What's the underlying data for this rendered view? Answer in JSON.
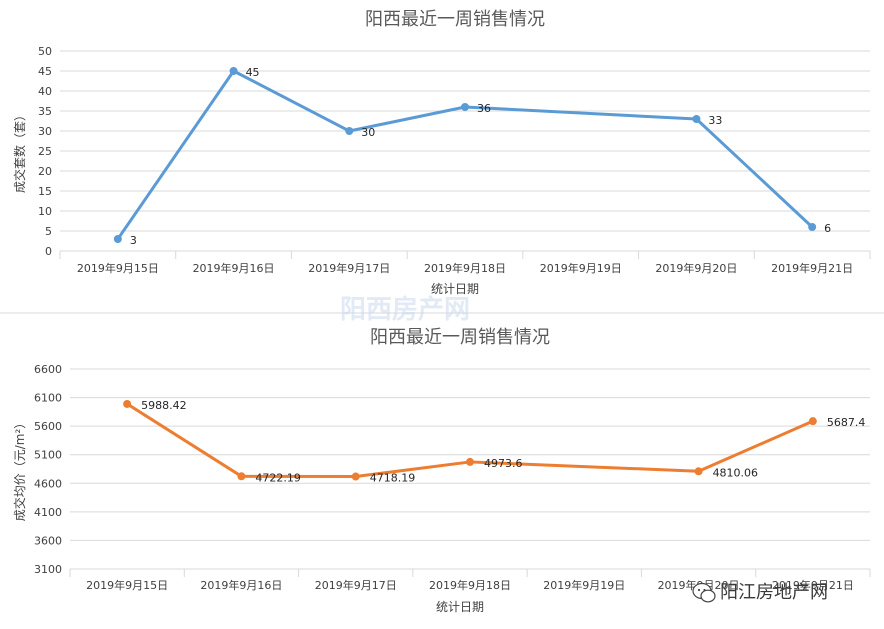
{
  "chart_data": [
    {
      "type": "line",
      "title": "阳西最近一周销售情况",
      "xlabel": "统计日期",
      "ylabel": "成交套数（套）",
      "categories": [
        "2019年9月15日",
        "2019年9月16日",
        "2019年9月17日",
        "2019年9月18日",
        "2019年9月19日",
        "2019年9月20日",
        "2019年9月21日"
      ],
      "series": [
        {
          "points": [
            {
              "x": "2019年9月15日",
              "y": 3,
              "label": "3"
            },
            {
              "x": "2019年9月16日",
              "y": 45,
              "label": "45"
            },
            {
              "x": "2019年9月17日",
              "y": 30,
              "label": "30"
            },
            {
              "x": "2019年9月18日",
              "y": 36,
              "label": "36"
            },
            {
              "x": "2019年9月20日",
              "y": 33,
              "label": "33"
            },
            {
              "x": "2019年9月21日",
              "y": 6,
              "label": "6"
            }
          ],
          "color": "#5b9bd5"
        }
      ],
      "ylim": [
        0,
        50
      ],
      "yticks": [
        "0",
        "5",
        "10",
        "15",
        "20",
        "25",
        "30",
        "35",
        "40",
        "45",
        "50"
      ],
      "grid": true,
      "legend": "none"
    },
    {
      "type": "line",
      "title": "阳西最近一周销售情况",
      "xlabel": "统计日期",
      "ylabel": "成交均价（元/m²）",
      "categories": [
        "2019年9月15日",
        "2019年9月16日",
        "2019年9月17日",
        "2019年9月18日",
        "2019年9月19日",
        "2019年9月20日",
        "2019年9月21日"
      ],
      "series": [
        {
          "points": [
            {
              "x": "2019年9月15日",
              "y": 5988.42,
              "label": "5988.42"
            },
            {
              "x": "2019年9月16日",
              "y": 4722.19,
              "label": "4722.19"
            },
            {
              "x": "2019年9月17日",
              "y": 4718.19,
              "label": "4718.19"
            },
            {
              "x": "2019年9月18日",
              "y": 4973.6,
              "label": "4973.6"
            },
            {
              "x": "2019年9月20日",
              "y": 4810.06,
              "label": "4810.06"
            },
            {
              "x": "2019年9月21日",
              "y": 5687.4,
              "label": "5687.4"
            }
          ],
          "color": "#ed7d31"
        }
      ],
      "ylim": [
        3100,
        6600
      ],
      "yticks": [
        "3100",
        "3600",
        "4100",
        "4600",
        "5100",
        "5600",
        "6100",
        "6600"
      ],
      "grid": true,
      "legend": "none"
    }
  ],
  "watermark": {
    "text": "阳西房产网"
  },
  "brand": {
    "text": "阳江房地产网",
    "icon": "wechat-icon"
  }
}
